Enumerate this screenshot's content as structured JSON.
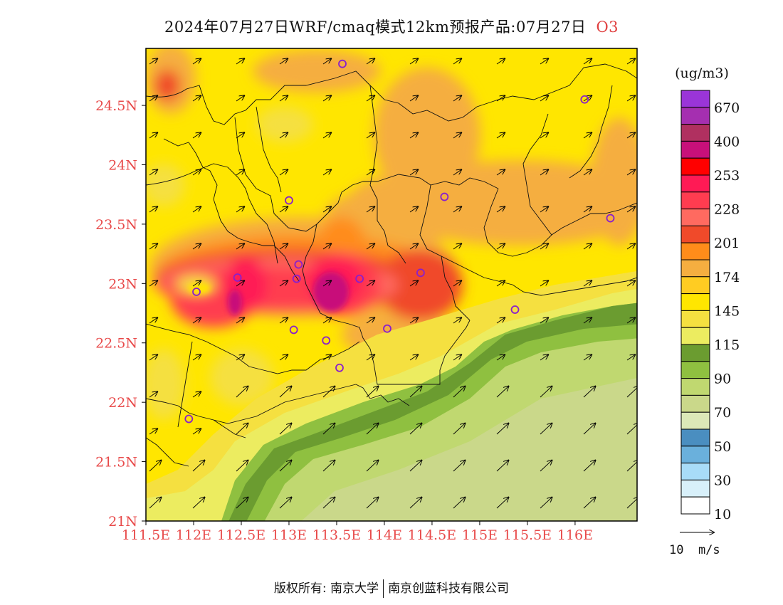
{
  "title": {
    "text": "2024年07月27日WRF/cmaq模式12km预报产品:07月27日",
    "species": "O3"
  },
  "axes": {
    "lat_labels": [
      "24.5N",
      "24N",
      "23.5N",
      "23N",
      "22.5N",
      "22N",
      "21.5N",
      "21N"
    ],
    "lon_labels": [
      "111.5E",
      "112E",
      "112.5E",
      "113E",
      "113.5E",
      "114E",
      "114.5E",
      "115E",
      "115.5E",
      "116E"
    ],
    "label_color": "#e84a4a"
  },
  "colorbar": {
    "unit": "(ug/m3)",
    "labels": [
      "670",
      "400",
      "253",
      "228",
      "201",
      "174",
      "145",
      "115",
      "90",
      "70",
      "50",
      "30",
      "10"
    ],
    "colors": [
      "#9a35d8",
      "#a52fb0",
      "#b03060",
      "#c8107a",
      "#ff0000",
      "#ff1a55",
      "#ff3c50",
      "#ff6a60",
      "#f04a2a",
      "#ff8c1a",
      "#f5ae40",
      "#ffcc22",
      "#ffe600",
      "#f5e040",
      "#ecec60",
      "#6b9c30",
      "#8fc040",
      "#c0d870",
      "#cad88a",
      "#dce8b8",
      "#4a8ec0",
      "#6ab0dc",
      "#a8dcf8",
      "#d8f0fa",
      "#ffffff"
    ]
  },
  "wind_legend": {
    "label": "10  m/s"
  },
  "stations": [
    {
      "lon": 113.56,
      "lat": 24.85
    },
    {
      "lon": 116.1,
      "lat": 24.55
    },
    {
      "lon": 113.0,
      "lat": 23.7
    },
    {
      "lon": 114.63,
      "lat": 23.73
    },
    {
      "lon": 116.37,
      "lat": 23.55
    },
    {
      "lon": 113.1,
      "lat": 23.16
    },
    {
      "lon": 114.38,
      "lat": 23.09
    },
    {
      "lon": 112.46,
      "lat": 23.05
    },
    {
      "lon": 113.08,
      "lat": 23.04
    },
    {
      "lon": 113.74,
      "lat": 23.04
    },
    {
      "lon": 112.03,
      "lat": 22.93
    },
    {
      "lon": 115.37,
      "lat": 22.78
    },
    {
      "lon": 113.05,
      "lat": 22.61
    },
    {
      "lon": 114.03,
      "lat": 22.62
    },
    {
      "lon": 113.39,
      "lat": 22.52
    },
    {
      "lon": 113.53,
      "lat": 22.29
    },
    {
      "lon": 111.95,
      "lat": 21.86
    }
  ],
  "footer": {
    "left": "版权所有: 南京大学",
    "right": "南京创蓝科技有限公司"
  }
}
